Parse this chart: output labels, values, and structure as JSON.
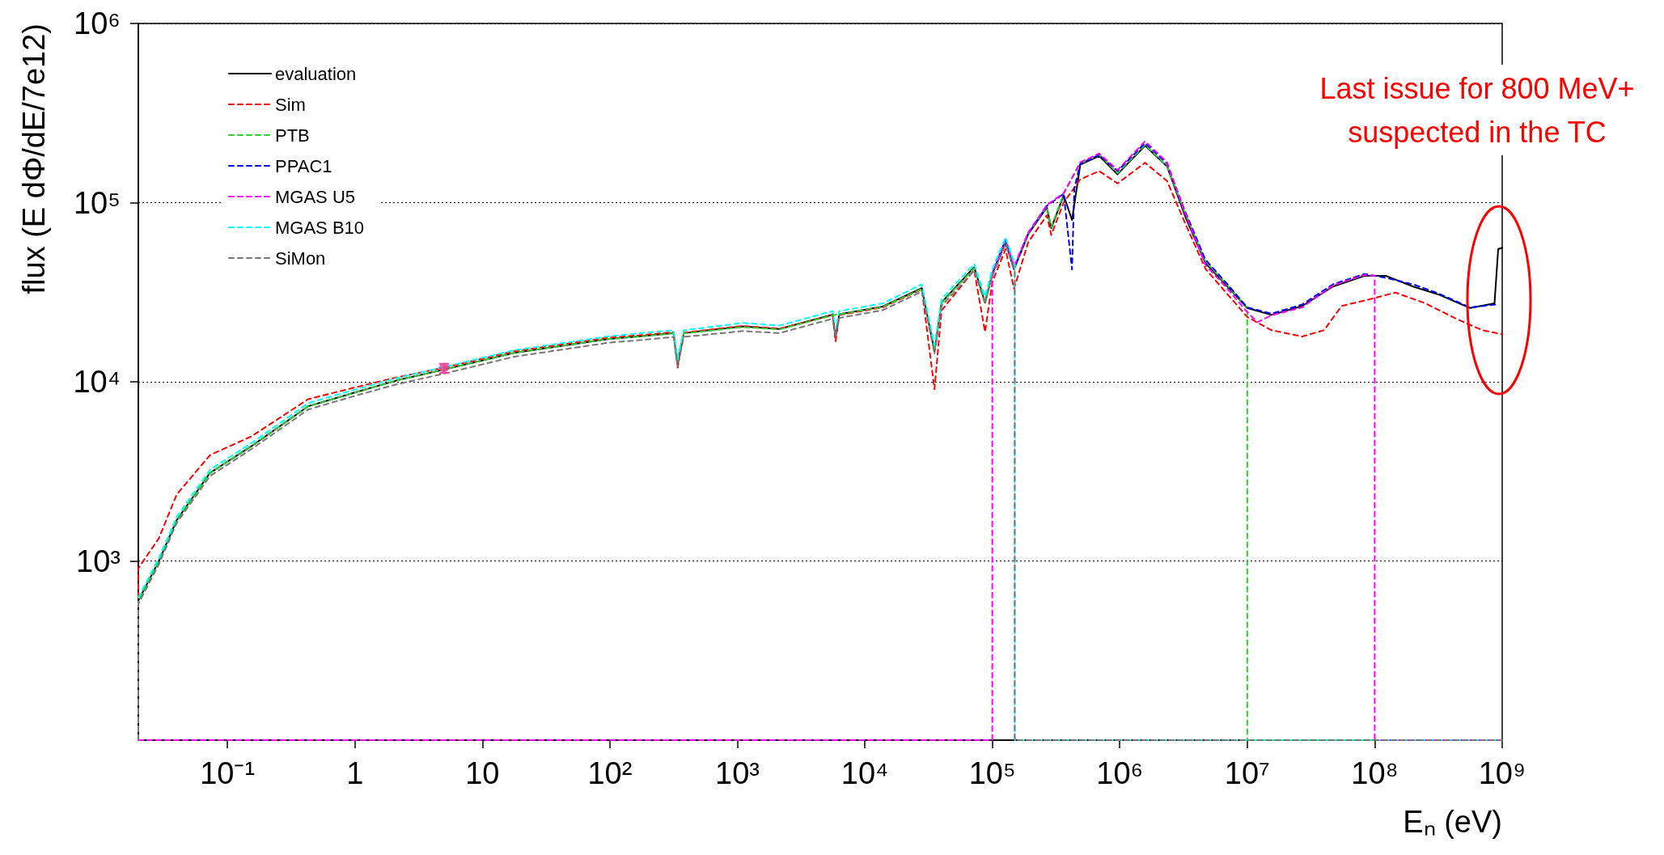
{
  "chart_data": {
    "type": "line",
    "xlabel": "Eₙ (eV)",
    "ylabel": "flux (E dΦ/dE/7e12)",
    "annotations": [
      "Last issue for 800 MeV+\nsuspected in the TC"
    ],
    "log": "xy",
    "grid": "y",
    "legend": "top left",
    "marker": "none",
    "xlim": [
      0.02,
      1000000000
    ],
    "ylim": [
      100,
      1000000
    ],
    "xticks": [
      {
        "value": 0.1,
        "label": "10⁻¹"
      },
      1,
      10,
      {
        "value": 100,
        "label": "10²"
      },
      {
        "value": 1000,
        "label": "10³"
      },
      {
        "value": 10000,
        "label": "10⁴"
      },
      {
        "value": 100000,
        "label": "10⁵"
      },
      {
        "value": 1000000,
        "label": "10⁶"
      },
      {
        "value": 10000000,
        "label": "10⁷"
      },
      {
        "value": 100000000,
        "label": "10⁸"
      },
      {
        "value": 1000000000,
        "label": "10⁹"
      }
    ],
    "yticks": [
      {
        "value": 1000,
        "label": "10³"
      },
      {
        "value": 10000,
        "label": "10⁴"
      },
      {
        "value": 100000,
        "label": "10⁵"
      },
      {
        "value": 1000000,
        "label": "10⁶"
      }
    ],
    "series": [
      {
        "name": "evaluation",
        "color": "#000000",
        "line_style": "solid",
        "x": [
          0.02,
          0.02,
          0.029,
          0.04,
          0.073,
          0.155,
          0.43,
          1,
          2.15,
          5,
          17.7,
          96,
          209,
          316,
          340,
          380,
          1100,
          2140,
          5600,
          5900,
          6300,
          13800,
          28000,
          35200,
          40000,
          72000,
          87700,
          100000,
          127000,
          148000,
          191000,
          268000,
          290000,
          363000,
          422000,
          490000,
          690000,
          960000,
          1580000,
          2350000,
          3300000,
          4700000,
          7000000,
          10000000,
          15500000,
          27000000,
          47000000,
          83000000,
          123000000,
          200000000,
          320000000,
          560000000,
          870000000,
          930000000,
          1000000000
        ],
        "values": [
          100,
          600,
          1000,
          1690,
          3100,
          4380,
          7300,
          8720,
          10200,
          11700,
          14500,
          17300,
          18200,
          18700,
          12600,
          18700,
          20400,
          19700,
          23700,
          17800,
          23800,
          26300,
          33300,
          14800,
          27700,
          43600,
          27700,
          40000,
          60000,
          42400,
          66500,
          94000,
          72000,
          110000,
          80000,
          163000,
          182000,
          144000,
          208000,
          159000,
          82000,
          46000,
          34000,
          25800,
          23600,
          26500,
          34000,
          39000,
          39000,
          34000,
          30600,
          25800,
          27400,
          55000,
          56000
        ]
      },
      {
        "name": "Sim",
        "color": "#ff0000",
        "line_style": "dashed",
        "x": [
          0.02,
          0.02,
          0.029,
          0.04,
          0.073,
          0.155,
          0.43,
          1,
          2.15,
          5,
          17.7,
          96,
          209,
          316,
          340,
          380,
          1100,
          2140,
          5600,
          5900,
          6300,
          13800,
          28000,
          35200,
          40000,
          72000,
          87700,
          100000,
          127000,
          148000,
          191000,
          268000,
          290000,
          363000,
          490000,
          690000,
          960000,
          1580000,
          2350000,
          3200000,
          4700000,
          10000000,
          15500000,
          27000000,
          40000000,
          55000000,
          90000000,
          145000000,
          250000000,
          440000000,
          700000000,
          1000000000
        ],
        "values": [
          100,
          910,
          1340,
          2350,
          3900,
          4970,
          8000,
          9300,
          10600,
          12000,
          14800,
          17600,
          18400,
          18900,
          12000,
          18800,
          20500,
          19800,
          23500,
          16800,
          23600,
          26000,
          32800,
          9100,
          25000,
          42000,
          19000,
          36000,
          55000,
          33000,
          60000,
          85000,
          66000,
          100000,
          135000,
          150000,
          128000,
          167000,
          132000,
          79000,
          42700,
          23000,
          19400,
          17900,
          19400,
          26500,
          28800,
          31500,
          27400,
          22400,
          19400,
          18400
        ]
      },
      {
        "name": "PTB",
        "color": "#33cc33",
        "line_style": "dashed",
        "x": [
          0.02,
          0.02,
          0.029,
          0.04,
          0.073,
          0.155,
          0.43,
          1,
          2.15,
          5,
          17.7,
          96,
          209,
          316,
          340,
          380,
          1100,
          2140,
          5600,
          13800,
          28000,
          35200,
          40000,
          72000,
          87700,
          100000,
          127000,
          148000,
          191000,
          268000,
          290000,
          363000,
          490000,
          690000,
          960000,
          1580000,
          2350000,
          3200000,
          4700000,
          7000000,
          10000000,
          10000000,
          1000000000
        ],
        "values": [
          100,
          600,
          1000,
          1700,
          3100,
          4400,
          7300,
          8700,
          10200,
          11700,
          14500,
          17300,
          18100,
          18600,
          12800,
          18600,
          20200,
          19600,
          23500,
          26200,
          33000,
          15000,
          27500,
          43000,
          28000,
          40500,
          61000,
          43000,
          67000,
          95000,
          73000,
          112000,
          165000,
          185000,
          146000,
          210000,
          160000,
          90000,
          47000,
          34500,
          26000,
          100,
          100
        ]
      },
      {
        "name": "PPAC1",
        "color": "#0000ff",
        "line_style": "dashed",
        "x": [
          100000,
          127000,
          148000,
          191000,
          268000,
          363000,
          422000,
          440000,
          490000,
          690000,
          960000,
          1580000,
          2350000,
          3200000,
          4700000,
          7000000,
          10000000,
          15500000,
          27000000,
          47000000,
          83000000,
          123000000,
          200000000,
          320000000,
          560000000,
          890000000
        ],
        "values": [
          40000,
          62000,
          43000,
          67000,
          96000,
          112000,
          42400,
          120000,
          165000,
          185000,
          150000,
          215000,
          165000,
          92000,
          48000,
          35000,
          26000,
          24000,
          27000,
          35000,
          40000,
          38000,
          35000,
          31000,
          26000,
          27000
        ]
      },
      {
        "name": "MGAS U5",
        "color": "#ff00ff",
        "line_style": "dashed",
        "x": [
          0.02,
          100000,
          100000,
          127000,
          148000,
          191000,
          268000,
          363000,
          490000,
          690000,
          960000,
          1580000,
          2350000,
          3200000,
          4700000,
          7000000,
          10000000,
          12000000,
          15500000,
          27000000,
          47000000,
          83000000,
          100000000,
          100000000,
          1000000000
        ],
        "values": [
          100,
          100,
          40000,
          63000,
          44000,
          68000,
          97000,
          113000,
          168000,
          188000,
          152000,
          220000,
          168000,
          90000,
          45000,
          33000,
          24500,
          21500,
          23500,
          26000,
          34500,
          39500,
          39000,
          100,
          100
        ]
      },
      {
        "name": "MGAS B10",
        "color": "#00ffff",
        "line_style": "dashed",
        "x": [
          0.02,
          0.029,
          0.04,
          0.073,
          0.155,
          0.43,
          1,
          2.15,
          5,
          17.7,
          96,
          209,
          316,
          340,
          380,
          1100,
          2140,
          5600,
          5900,
          6300,
          13800,
          28000,
          35200,
          40000,
          72000,
          87700,
          100000,
          127000,
          150000,
          150000,
          1000000000
        ],
        "values": [
          625,
          1040,
          1760,
          3230,
          4560,
          7600,
          9050,
          10500,
          12100,
          15000,
          17900,
          18900,
          19400,
          13500,
          19400,
          21300,
          20600,
          24800,
          19600,
          24800,
          27400,
          35000,
          16000,
          29000,
          45500,
          30000,
          42500,
          64000,
          45500,
          100,
          100
        ]
      },
      {
        "name": "SiMon",
        "color": "#777777",
        "line_style": "dashed",
        "x": [
          0.02,
          0.02,
          0.029,
          0.04,
          0.073,
          0.155,
          0.43,
          1,
          2.15,
          5,
          17.7,
          96,
          209,
          316,
          340,
          380,
          1100,
          2140,
          5600,
          5900,
          6300,
          13800,
          28000,
          35200,
          40000,
          72000,
          87700,
          100000,
          127000,
          150000,
          150000,
          1000000000
        ],
        "values": [
          100,
          575,
          960,
          1630,
          2980,
          4220,
          7000,
          8350,
          9700,
          11100,
          13800,
          16500,
          17300,
          17800,
          12200,
          17800,
          19200,
          18700,
          22500,
          17800,
          22700,
          25100,
          31900,
          14400,
          26500,
          41800,
          27400,
          38900,
          58600,
          41800,
          100,
          100
        ]
      },
      {
        "type": "scatter",
        "marker": "circle",
        "color": "#ee4499",
        "x": [
          5
        ],
        "values": [
          12000
        ],
        "errors": [
          [
            11200,
            12600
          ]
        ]
      }
    ]
  }
}
